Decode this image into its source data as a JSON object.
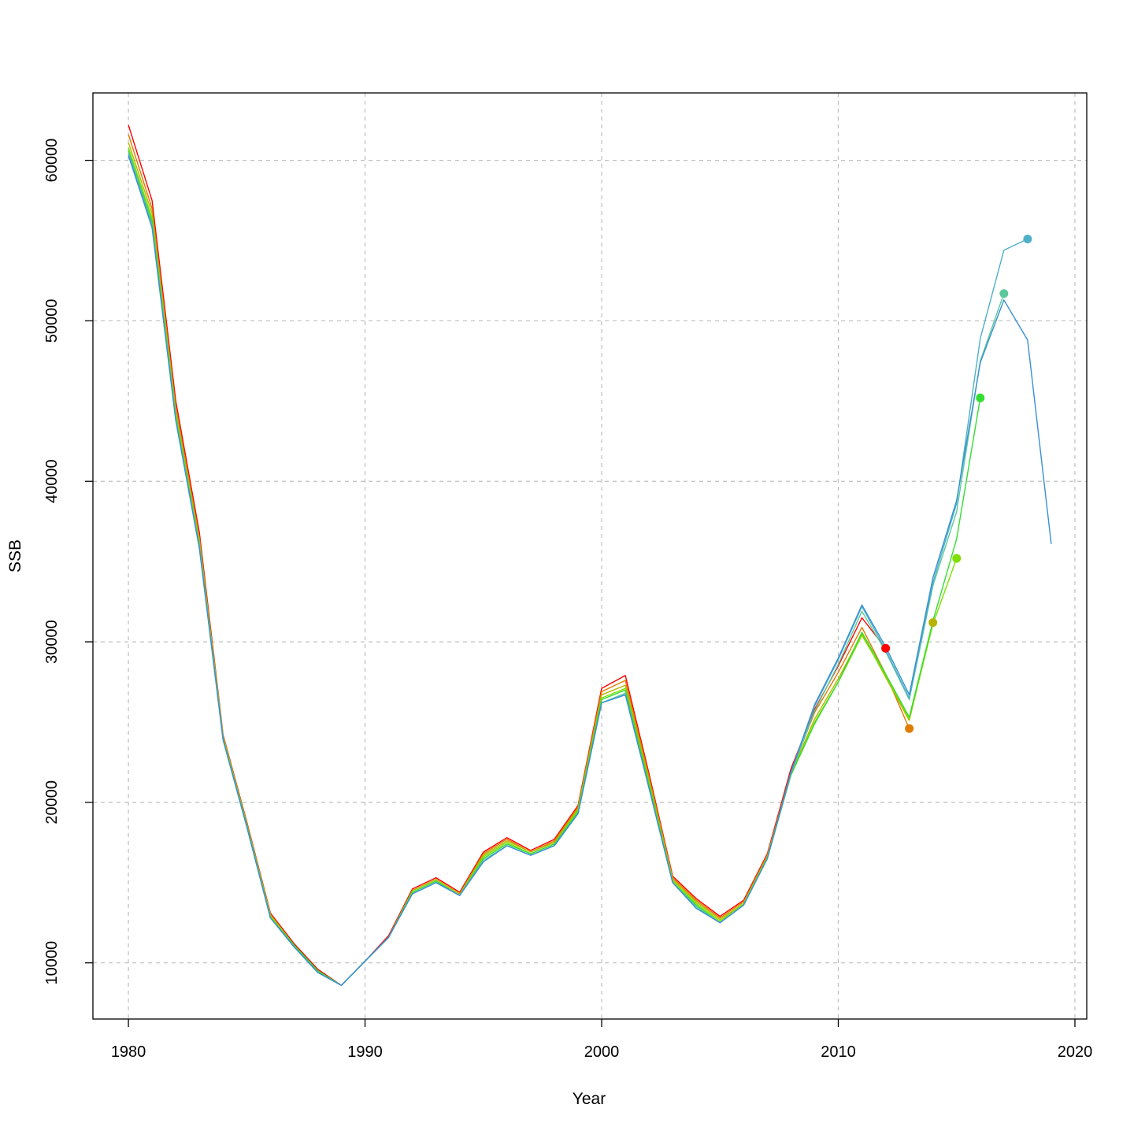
{
  "chart_data": {
    "type": "line",
    "xlabel": "Year",
    "ylabel": "SSB",
    "xlim": [
      1978.5,
      2020.5
    ],
    "ylim": [
      6500,
      64200
    ],
    "x_ticks": [
      1980,
      1990,
      2000,
      2010,
      2020
    ],
    "y_ticks": [
      10000,
      20000,
      30000,
      40000,
      50000,
      60000
    ],
    "grid": true,
    "series": [
      {
        "color": "#ff0000",
        "x": [
          1980,
          1981,
          1982,
          1983,
          1984,
          1985,
          1986,
          1987,
          1988,
          1989,
          1990,
          1991,
          1992,
          1993,
          1994,
          1995,
          1996,
          1997,
          1998,
          1999,
          2000,
          2001,
          2002,
          2003,
          2004,
          2005,
          2006,
          2007,
          2008,
          2009,
          2010,
          2011,
          2012
        ],
        "values": [
          62200,
          57500,
          45000,
          36800,
          24200,
          18800,
          13100,
          11200,
          9600,
          8600,
          10100,
          11700,
          14600,
          15300,
          14400,
          16900,
          17800,
          17000,
          17700,
          19800,
          27100,
          27900,
          21800,
          15400,
          14000,
          12900,
          13900,
          16800,
          22100,
          25800,
          28500,
          31500,
          29600
        ]
      },
      {
        "color": "#e07b00",
        "x": [
          1980,
          1981,
          1982,
          1983,
          1984,
          1985,
          1986,
          1987,
          1988,
          1989,
          1990,
          1991,
          1992,
          1993,
          1994,
          1995,
          1996,
          1997,
          1998,
          1999,
          2000,
          2001,
          2002,
          2003,
          2004,
          2005,
          2006,
          2007,
          2008,
          2009,
          2010,
          2011,
          2012,
          2013
        ],
        "values": [
          61600,
          57000,
          44600,
          36500,
          24100,
          18700,
          13000,
          11100,
          9500,
          8600,
          10100,
          11600,
          14500,
          15200,
          14300,
          16800,
          17700,
          16900,
          17600,
          19700,
          26900,
          27600,
          21600,
          15300,
          13900,
          12800,
          13800,
          16700,
          21900,
          25600,
          28100,
          30900,
          28000,
          24600
        ]
      },
      {
        "color": "#b5b500",
        "x": [
          1980,
          1981,
          1982,
          1983,
          1984,
          1985,
          1986,
          1987,
          1988,
          1989,
          1990,
          1991,
          1992,
          1993,
          1994,
          1995,
          1996,
          1997,
          1998,
          1999,
          2000,
          2001,
          2002,
          2003,
          2004,
          2005,
          2006,
          2007,
          2008,
          2009,
          2010,
          2011,
          2012,
          2013,
          2014
        ],
        "values": [
          61100,
          56700,
          44400,
          36300,
          24100,
          18700,
          13000,
          11100,
          9500,
          8600,
          10100,
          11600,
          14500,
          15200,
          14300,
          16700,
          17600,
          16900,
          17500,
          19600,
          26700,
          27300,
          21400,
          15200,
          13800,
          12700,
          13700,
          16600,
          21800,
          25200,
          27700,
          30500,
          27800,
          25100,
          31200
        ]
      },
      {
        "color": "#7fe000",
        "x": [
          1980,
          1981,
          1982,
          1983,
          1984,
          1985,
          1986,
          1987,
          1988,
          1989,
          1990,
          1991,
          1992,
          1993,
          1994,
          1995,
          1996,
          1997,
          1998,
          1999,
          2000,
          2001,
          2002,
          2003,
          2004,
          2005,
          2006,
          2007,
          2008,
          2009,
          2010,
          2011,
          2012,
          2013,
          2014,
          2015
        ],
        "values": [
          60800,
          56400,
          44200,
          36100,
          24000,
          18600,
          12900,
          11100,
          9500,
          8600,
          10100,
          11600,
          14400,
          15100,
          14200,
          16600,
          17500,
          16800,
          17400,
          19500,
          26500,
          27100,
          21200,
          15100,
          13700,
          12600,
          13700,
          16600,
          21700,
          25000,
          27500,
          30400,
          27900,
          25200,
          31100,
          35200
        ]
      },
      {
        "color": "#33dd33",
        "x": [
          1980,
          1981,
          1982,
          1983,
          1984,
          1985,
          1986,
          1987,
          1988,
          1989,
          1990,
          1991,
          1992,
          1993,
          1994,
          1995,
          1996,
          1997,
          1998,
          1999,
          2000,
          2001,
          2002,
          2003,
          2004,
          2005,
          2006,
          2007,
          2008,
          2009,
          2010,
          2011,
          2012,
          2013,
          2014,
          2015,
          2016
        ],
        "values": [
          60600,
          56200,
          44000,
          36000,
          23900,
          18600,
          12800,
          11100,
          9500,
          8600,
          10100,
          11600,
          14400,
          15100,
          14200,
          16500,
          17400,
          16800,
          17400,
          19400,
          26400,
          27000,
          21100,
          15000,
          13600,
          12500,
          13600,
          16500,
          21700,
          24900,
          27500,
          30600,
          28000,
          25300,
          31300,
          36400,
          45200
        ]
      },
      {
        "color": "#5cc99a",
        "x": [
          1980,
          1981,
          1982,
          1983,
          1984,
          1985,
          1986,
          1987,
          1988,
          1989,
          1990,
          1991,
          1992,
          1993,
          1994,
          1995,
          1996,
          1997,
          1998,
          1999,
          2000,
          2001,
          2002,
          2003,
          2004,
          2005,
          2006,
          2007,
          2008,
          2009,
          2010,
          2011,
          2012,
          2013,
          2014,
          2015,
          2016,
          2017
        ],
        "values": [
          60500,
          56000,
          43900,
          35900,
          23900,
          18500,
          12800,
          11000,
          9400,
          8600,
          10100,
          11600,
          14300,
          15000,
          14200,
          16400,
          17300,
          16700,
          17300,
          19300,
          26200,
          26800,
          20900,
          15000,
          13500,
          12500,
          13600,
          16500,
          21800,
          25700,
          28600,
          31900,
          29400,
          26400,
          33500,
          38100,
          47500,
          51700
        ]
      },
      {
        "color": "#4fb0c8",
        "x": [
          1980,
          1981,
          1982,
          1983,
          1984,
          1985,
          1986,
          1987,
          1988,
          1989,
          1990,
          1991,
          1992,
          1993,
          1994,
          1995,
          1996,
          1997,
          1998,
          1999,
          2000,
          2001,
          2002,
          2003,
          2004,
          2005,
          2006,
          2007,
          2008,
          2009,
          2010,
          2011,
          2012,
          2013,
          2014,
          2015,
          2016,
          2017,
          2018
        ],
        "values": [
          60400,
          55900,
          43800,
          35900,
          23900,
          18500,
          12800,
          11000,
          9400,
          8600,
          10100,
          11600,
          14300,
          15000,
          14200,
          16300,
          17300,
          16700,
          17300,
          19300,
          26200,
          26700,
          20900,
          15000,
          13400,
          12500,
          13600,
          16500,
          21800,
          26000,
          28900,
          32200,
          29500,
          26500,
          33700,
          38600,
          48900,
          54400,
          55100
        ]
      },
      {
        "color": "#3a8fd6",
        "x": [
          1980,
          1981,
          1982,
          1983,
          1984,
          1985,
          1986,
          1987,
          1988,
          1989,
          1990,
          1991,
          1992,
          1993,
          1994,
          1995,
          1996,
          1997,
          1998,
          1999,
          2000,
          2001,
          2002,
          2003,
          2004,
          2005,
          2006,
          2007,
          2008,
          2009,
          2010,
          2011,
          2012,
          2013,
          2014,
          2015,
          2016,
          2017,
          2018,
          2019
        ],
        "values": [
          60300,
          55800,
          43800,
          35800,
          23900,
          18500,
          12800,
          11000,
          9400,
          8600,
          10100,
          11600,
          14300,
          15000,
          14200,
          16300,
          17300,
          16700,
          17300,
          19300,
          26200,
          26700,
          20900,
          15000,
          13400,
          12500,
          13600,
          16500,
          21900,
          26100,
          29000,
          32300,
          29700,
          26700,
          34000,
          38800,
          47400,
          51300,
          48800,
          36100
        ]
      }
    ],
    "markers": [
      {
        "x": 2012,
        "y": 29600,
        "color": "#ff0000"
      },
      {
        "x": 2013,
        "y": 24600,
        "color": "#e07b00"
      },
      {
        "x": 2014,
        "y": 31200,
        "color": "#b5b500"
      },
      {
        "x": 2015,
        "y": 35200,
        "color": "#7fe000"
      },
      {
        "x": 2016,
        "y": 45200,
        "color": "#33dd33"
      },
      {
        "x": 2017,
        "y": 51700,
        "color": "#5cc99a"
      },
      {
        "x": 2018,
        "y": 55100,
        "color": "#4fb0c8"
      }
    ]
  }
}
